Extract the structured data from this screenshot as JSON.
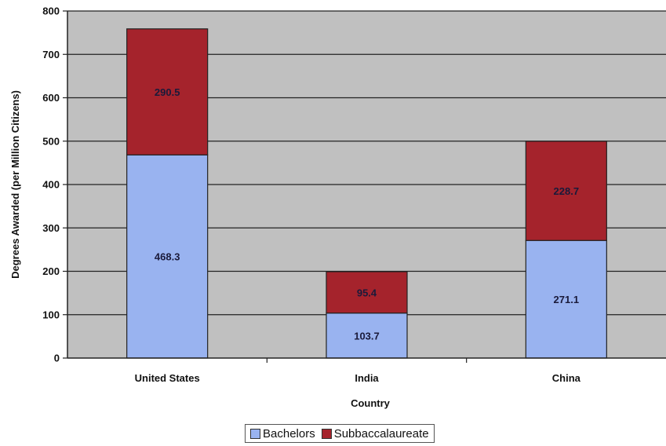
{
  "chart_data": {
    "type": "bar",
    "stacked": true,
    "title": "",
    "xlabel": "Country",
    "ylabel": "Degrees Awarded (per Million Citizens)",
    "categories": [
      "United States",
      "India",
      "China"
    ],
    "series": [
      {
        "name": "Bachelors",
        "color": "#99b3f0",
        "values": [
          468.3,
          103.7,
          271.1
        ],
        "labels": [
          "468.3",
          "103.7",
          "271.1"
        ]
      },
      {
        "name": "Subbaccalaureate",
        "color": "#a5232c",
        "values": [
          290.5,
          95.4,
          228.7
        ],
        "labels": [
          "290.5",
          "95.4",
          "228.7"
        ]
      }
    ],
    "ylim": [
      0,
      800
    ],
    "yticks": [
      "0",
      "100",
      "200",
      "300",
      "400",
      "500",
      "600",
      "700",
      "800"
    ],
    "grid": true,
    "plot_background": "#c0c0c0",
    "legend_position": "bottom"
  }
}
